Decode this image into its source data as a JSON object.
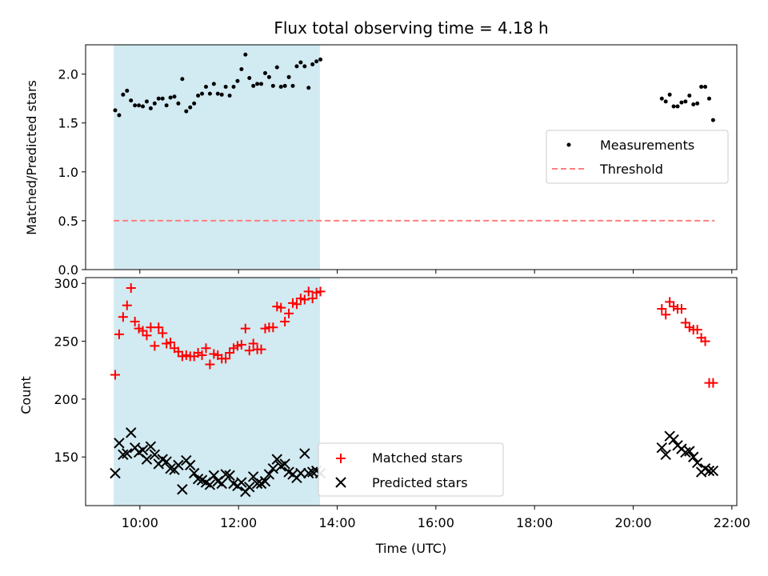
{
  "title": "Flux total observing time = 4.18 h",
  "chart_data": [
    {
      "type": "scatter",
      "ylabel": "Matched/Predicted stars",
      "xlim": [
        8.9,
        22.1
      ],
      "ylim": [
        0.0,
        2.3
      ],
      "y_ticks": [
        0.0,
        0.5,
        1.0,
        1.5,
        2.0
      ],
      "y_tick_labels": [
        "0.0",
        "0.5",
        "1.0",
        "1.5",
        "2.0"
      ],
      "shaded_interval": [
        9.47,
        13.65
      ],
      "shade_color": "#add8e6",
      "legend_position": "center-right",
      "series": [
        {
          "name": "Measurements",
          "marker": "dot",
          "color": "#000000",
          "x": [
            9.5,
            9.58,
            9.66,
            9.74,
            9.82,
            9.9,
            9.98,
            10.06,
            10.14,
            10.22,
            10.3,
            10.38,
            10.46,
            10.54,
            10.62,
            10.7,
            10.78,
            10.86,
            10.94,
            11.02,
            11.1,
            11.18,
            11.26,
            11.34,
            11.42,
            11.5,
            11.58,
            11.66,
            11.74,
            11.82,
            11.9,
            11.98,
            12.06,
            12.14,
            12.22,
            12.3,
            12.38,
            12.46,
            12.54,
            12.62,
            12.7,
            12.78,
            12.86,
            12.94,
            13.02,
            13.1,
            13.18,
            13.26,
            13.34,
            13.42,
            13.5,
            13.58,
            13.66,
            20.58,
            20.66,
            20.74,
            20.82,
            20.9,
            20.98,
            21.06,
            21.14,
            21.22,
            21.3,
            21.38,
            21.46,
            21.54,
            21.62
          ],
          "y": [
            1.63,
            1.58,
            1.79,
            1.83,
            1.73,
            1.68,
            1.68,
            1.67,
            1.72,
            1.65,
            1.7,
            1.75,
            1.75,
            1.68,
            1.76,
            1.77,
            1.7,
            1.95,
            1.62,
            1.66,
            1.7,
            1.78,
            1.8,
            1.87,
            1.8,
            1.9,
            1.8,
            1.79,
            1.87,
            1.78,
            1.87,
            1.93,
            2.05,
            2.2,
            1.96,
            1.88,
            1.9,
            1.9,
            2.01,
            1.97,
            1.88,
            2.07,
            1.87,
            1.88,
            1.97,
            1.88,
            2.08,
            2.12,
            2.08,
            1.86,
            2.1,
            2.13,
            2.15,
            1.75,
            1.72,
            1.79,
            1.67,
            1.67,
            1.71,
            1.72,
            1.78,
            1.69,
            1.7,
            1.87,
            1.87,
            1.75,
            1.53
          ]
        },
        {
          "name": "Threshold",
          "marker": "dashed-line",
          "color": "#ff7f7f",
          "x": [
            9.47,
            21.65
          ],
          "y": [
            0.5,
            0.5
          ]
        }
      ]
    },
    {
      "type": "scatter",
      "xlabel": "Time (UTC)",
      "ylabel": "Count",
      "xlim": [
        8.9,
        22.1
      ],
      "ylim": [
        108,
        305
      ],
      "x_ticks": [
        10,
        12,
        14,
        16,
        18,
        20,
        22
      ],
      "x_tick_labels": [
        "10:00",
        "12:00",
        "14:00",
        "16:00",
        "18:00",
        "20:00",
        "22:00"
      ],
      "y_ticks": [
        150,
        200,
        250,
        300
      ],
      "y_tick_labels": [
        "150",
        "200",
        "250",
        "300"
      ],
      "shaded_interval": [
        9.47,
        13.65
      ],
      "shade_color": "#add8e6",
      "legend_position": "lower-center",
      "series": [
        {
          "name": "Matched stars",
          "marker": "plus",
          "color": "#ff0000",
          "x": [
            9.5,
            9.58,
            9.66,
            9.74,
            9.82,
            9.9,
            9.98,
            10.06,
            10.14,
            10.22,
            10.3,
            10.38,
            10.46,
            10.54,
            10.62,
            10.7,
            10.78,
            10.86,
            10.94,
            11.02,
            11.1,
            11.18,
            11.26,
            11.34,
            11.42,
            11.5,
            11.58,
            11.66,
            11.74,
            11.82,
            11.9,
            11.98,
            12.06,
            12.14,
            12.22,
            12.3,
            12.38,
            12.46,
            12.54,
            12.62,
            12.7,
            12.78,
            12.86,
            12.94,
            13.02,
            13.1,
            13.18,
            13.26,
            13.34,
            13.42,
            13.5,
            13.58,
            13.66,
            20.58,
            20.66,
            20.74,
            20.82,
            20.9,
            20.98,
            21.06,
            21.14,
            21.22,
            21.3,
            21.38,
            21.46,
            21.54,
            21.62
          ],
          "y": [
            221,
            256,
            271,
            281,
            296,
            267,
            261,
            259,
            255,
            262,
            246,
            262,
            257,
            248,
            249,
            244,
            241,
            237,
            238,
            237,
            237,
            240,
            238,
            244,
            230,
            239,
            238,
            235,
            235,
            240,
            244,
            246,
            247,
            261,
            242,
            248,
            243,
            243,
            261,
            262,
            262,
            280,
            279,
            267,
            274,
            283,
            282,
            287,
            286,
            293,
            287,
            292,
            293,
            278,
            273,
            284,
            280,
            278,
            278,
            266,
            262,
            260,
            260,
            253,
            250,
            214,
            214
          ]
        },
        {
          "name": "Predicted stars",
          "marker": "x",
          "color": "#000000",
          "x": [
            9.5,
            9.58,
            9.66,
            9.74,
            9.82,
            9.9,
            9.98,
            10.06,
            10.14,
            10.22,
            10.3,
            10.38,
            10.46,
            10.54,
            10.62,
            10.7,
            10.78,
            10.86,
            10.94,
            11.02,
            11.1,
            11.18,
            11.26,
            11.34,
            11.42,
            11.5,
            11.58,
            11.66,
            11.74,
            11.82,
            11.9,
            11.98,
            12.06,
            12.14,
            12.22,
            12.3,
            12.38,
            12.46,
            12.54,
            12.62,
            12.7,
            12.78,
            12.86,
            12.94,
            13.02,
            13.1,
            13.18,
            13.26,
            13.34,
            13.42,
            13.5,
            13.58,
            13.66,
            20.58,
            20.66,
            20.74,
            20.82,
            20.9,
            20.98,
            21.06,
            21.14,
            21.22,
            21.3,
            21.38,
            21.46,
            21.54,
            21.62
          ],
          "y": [
            136,
            162,
            152,
            153,
            171,
            158,
            154,
            156,
            148,
            159,
            152,
            144,
            148,
            146,
            140,
            139,
            143,
            122,
            147,
            143,
            136,
            131,
            130,
            128,
            126,
            134,
            129,
            127,
            135,
            134,
            127,
            125,
            128,
            120,
            124,
            133,
            127,
            127,
            129,
            135,
            140,
            148,
            142,
            144,
            137,
            135,
            132,
            136,
            153,
            136,
            137,
            138,
            136,
            158,
            152,
            168,
            165,
            160,
            157,
            154,
            155,
            150,
            145,
            137,
            140,
            138,
            138
          ]
        }
      ]
    }
  ]
}
